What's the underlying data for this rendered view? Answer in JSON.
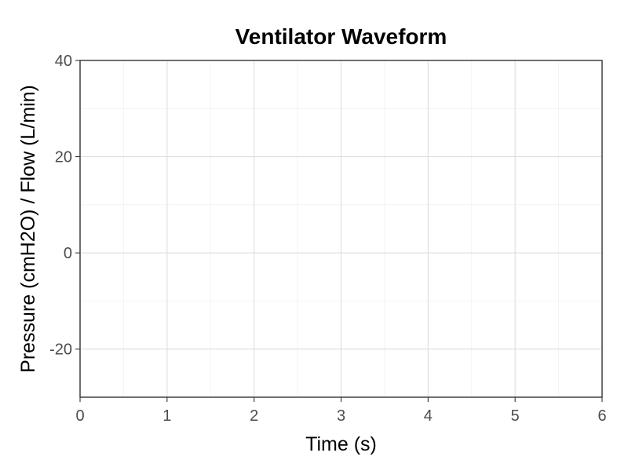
{
  "chart_data": {
    "type": "line",
    "title": "Ventilator Waveform",
    "xlabel": "Time (s)",
    "ylabel": "Pressure (cmH2O) / Flow (L/min)",
    "xlim": [
      0,
      6
    ],
    "ylim": [
      -30,
      40
    ],
    "x_ticks": [
      0,
      1,
      2,
      3,
      4,
      5,
      6
    ],
    "x_tick_labels": [
      "0",
      "1",
      "2",
      "3",
      "4",
      "5",
      "6"
    ],
    "y_ticks": [
      -20,
      0,
      20,
      40
    ],
    "y_tick_labels": [
      "-20",
      "0",
      "20",
      "40"
    ],
    "grid": true,
    "series": []
  }
}
